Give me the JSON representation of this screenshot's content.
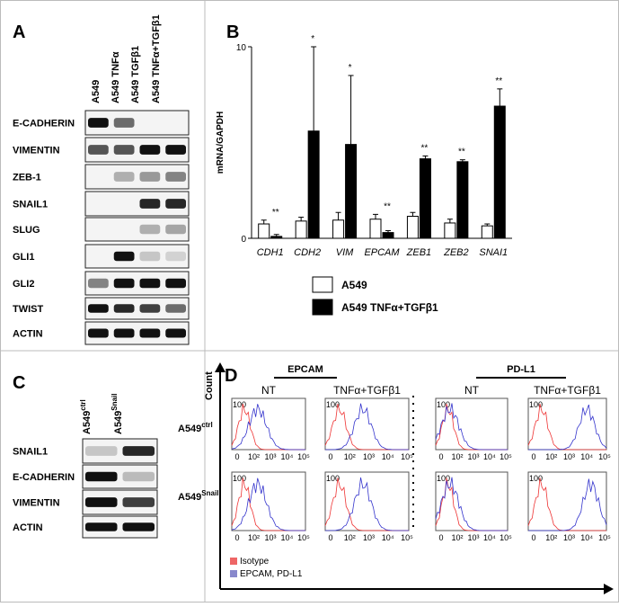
{
  "panel_a": {
    "label": "A",
    "lanes": [
      "A549",
      "A549 TNFα",
      "A549 TGFβ1",
      "A549 TNFα+TGFβ1"
    ],
    "rows": [
      "E-CADHERIN",
      "VIMENTIN",
      "ZEB-1",
      "SNAIL1",
      "SLUG",
      "GLI1",
      "GLI2",
      "TWIST",
      "ACTIN"
    ]
  },
  "chart_data": {
    "type": "bar",
    "panel_label": "B",
    "y_label": "mRNA/GAPDH",
    "categories": [
      "CDH1",
      "CDH2",
      "VIM",
      "EPCAM",
      "ZEB1",
      "ZEB2",
      "SNAI1"
    ],
    "series": [
      {
        "name": "A549",
        "color": "#ffffff",
        "values": [
          0.75,
          0.9,
          0.95,
          1.0,
          1.15,
          0.8,
          0.65
        ],
        "errors": [
          0.2,
          0.2,
          0.4,
          0.25,
          0.2,
          0.2,
          0.1
        ]
      },
      {
        "name": "A549 TNFα+TGFβ1",
        "color": "#000000",
        "values": [
          0.1,
          5.6,
          4.9,
          0.3,
          4.15,
          4.0,
          6.9
        ],
        "errors": [
          0.1,
          4.4,
          3.6,
          0.1,
          0.15,
          0.1,
          0.9
        ]
      }
    ],
    "annotations": [
      "**",
      "*",
      "*",
      "**",
      "**",
      "**",
      "**"
    ],
    "ylim": [
      0,
      10
    ],
    "yticks": [
      0,
      10
    ]
  },
  "panel_c": {
    "label": "C",
    "lanes": [
      {
        "base": "A549",
        "sup": "ctrl"
      },
      {
        "base": "A549",
        "sup": "Snail"
      }
    ],
    "rows": [
      "SNAIL1",
      "E-CADHERIN",
      "VIMENTIN",
      "ACTIN"
    ]
  },
  "panel_d": {
    "label": "D",
    "y_label": "Count",
    "groups": [
      "EPCAM",
      "PD-L1"
    ],
    "columns": [
      "NT",
      "TNFα+TGFβ1",
      "NT",
      "TNFα+TGFβ1"
    ],
    "rows": [
      {
        "base": "A549",
        "sup": "ctrl"
      },
      {
        "base": "A549",
        "sup": "Snail"
      }
    ],
    "y_tick": "100",
    "x_ticks": [
      "0",
      "10²",
      "10³",
      "10⁴",
      "10⁵"
    ],
    "legend": [
      "Isotype",
      "EPCAM, PD-L1"
    ]
  }
}
